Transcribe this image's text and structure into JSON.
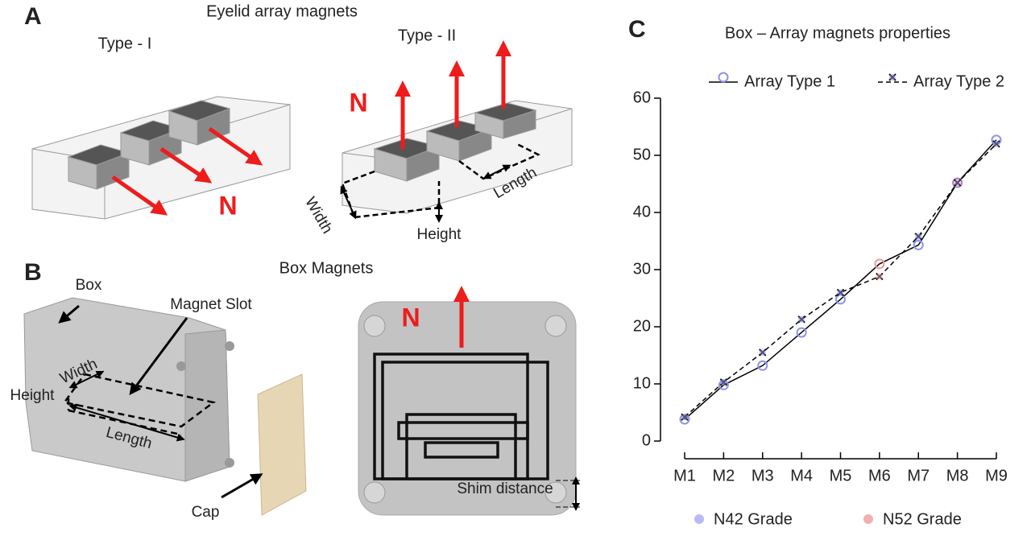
{
  "panel_a": {
    "letter": "A",
    "title": "Eyelid array magnets",
    "type1": "Type - I",
    "type2": "Type - II",
    "n1": "N",
    "n2": "N",
    "width": "Width",
    "height": "Height",
    "length": "Length"
  },
  "panel_b": {
    "letter": "B",
    "title": "Box Magnets",
    "box": "Box",
    "slot": "Magnet Slot",
    "width": "Width",
    "height": "Height",
    "length": "Length",
    "cap": "Cap",
    "n": "N",
    "shim": "Shim distance"
  },
  "chart_data": {
    "type": "line",
    "panel_label": "C",
    "title": "Box – Array magnets properties",
    "categories": [
      "M1",
      "M2",
      "M3",
      "M4",
      "M5",
      "M6",
      "M7",
      "M8",
      "M9"
    ],
    "series": [
      {
        "name": "Array Type 1",
        "color": "#000000",
        "line_style": "solid",
        "marker": "plus",
        "values": [
          3.8,
          9.8,
          13.2,
          19,
          24.8,
          31,
          34.3,
          45.2,
          52.7
        ]
      },
      {
        "name": "Array Type 2",
        "color": "#000000",
        "line_style": "dashed",
        "marker": "cross",
        "values": [
          4.2,
          10.3,
          15.5,
          21.3,
          26,
          28.8,
          35.8,
          45.2,
          52
        ]
      }
    ],
    "marker_colors": [
      "#8f92ea",
      "#8f92ea",
      "#8f92ea",
      "#8f92ea",
      "#8f92ea",
      "#f09a9a",
      "#8f92ea",
      "#a77fc4",
      "#8f92ea"
    ],
    "grade_legend": [
      {
        "name": "N42 Grade",
        "color": "#b9baf2"
      },
      {
        "name": "N52 Grade",
        "color": "#f3b0b0"
      }
    ],
    "ylim": [
      0,
      60
    ],
    "yticks": [
      0,
      10,
      20,
      30,
      40,
      50,
      60
    ],
    "grid": false
  }
}
